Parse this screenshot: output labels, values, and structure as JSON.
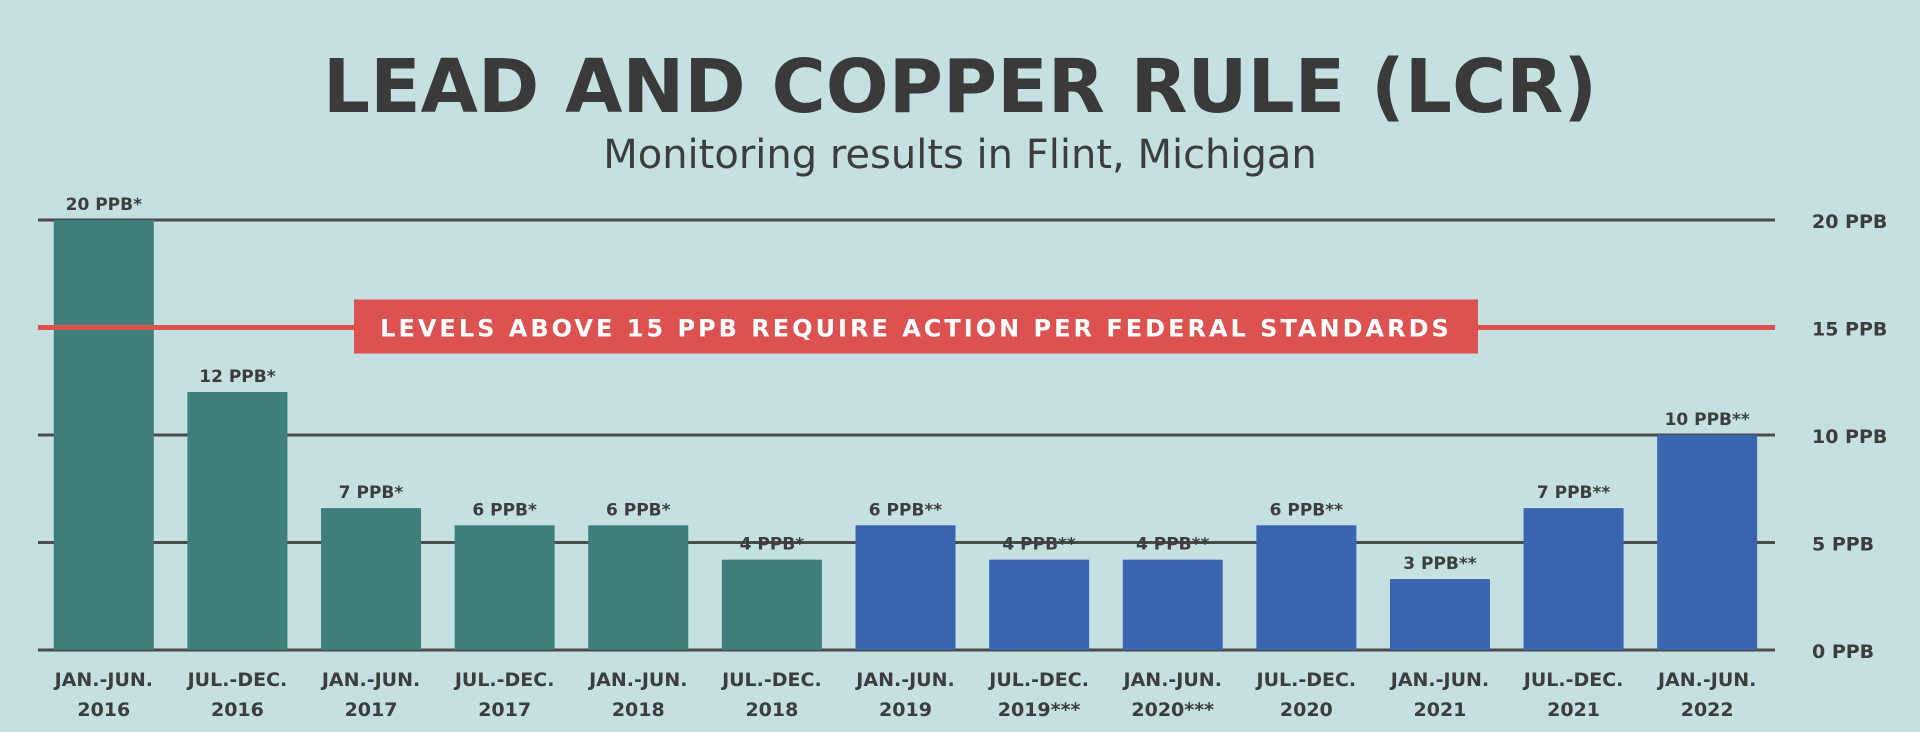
{
  "chart_data": {
    "type": "bar",
    "title": "LEAD AND COPPER RULE (LCR)",
    "subtitle": "Monitoring results in Flint, Michigan",
    "categories": [
      [
        "JAN.-JUN.",
        "2016"
      ],
      [
        "JUL.-DEC.",
        "2016"
      ],
      [
        "JAN.-JUN.",
        "2017"
      ],
      [
        "JUL.-DEC.",
        "2017"
      ],
      [
        "JAN.-JUN.",
        "2018"
      ],
      [
        "JUL.-DEC.",
        "2018"
      ],
      [
        "JAN.-JUN.",
        "2019"
      ],
      [
        "JUL.-DEC.",
        "2019***"
      ],
      [
        "JAN.-JUN.",
        "2020***"
      ],
      [
        "JUL.-DEC.",
        "2020"
      ],
      [
        "JAN.-JUN.",
        "2021"
      ],
      [
        "JUL.-DEC.",
        "2021"
      ],
      [
        "JAN.-JUN.",
        "2022"
      ]
    ],
    "values": [
      20,
      12,
      6.6,
      5.8,
      5.8,
      4.2,
      5.8,
      4.2,
      4.2,
      5.8,
      3.3,
      6.6,
      10
    ],
    "labels": [
      "20 PPB*",
      "12 PPB*",
      "7 PPB*",
      "6 PPB*",
      "6 PPB*",
      "4 PPB*",
      "6 PPB**",
      "4 PPB**",
      "4 PPB**",
      "6 PPB**",
      "3 PPB**",
      "7 PPB**",
      "10 PPB**"
    ],
    "series_group": [
      "teal",
      "teal",
      "teal",
      "teal",
      "teal",
      "teal",
      "blue",
      "blue",
      "blue",
      "blue",
      "blue",
      "blue",
      "blue"
    ],
    "yticks": [
      0,
      5,
      10,
      15,
      20
    ],
    "ytick_labels": [
      "0 PPB",
      "5 PPB",
      "10 PPB",
      "15 PPB",
      "20 PPB"
    ],
    "ylim": [
      0,
      20
    ],
    "threshold": {
      "value": 15,
      "label": "LEVELS ABOVE 15 PPB REQUIRE ACTION PER FEDERAL STANDARDS"
    },
    "grid": true
  },
  "colors": {
    "background": "#c5e0e0",
    "teal": "#3e7f7c",
    "blue": "#3966ae",
    "gridline": "#4b4b4b",
    "threshold": "#dc5250",
    "text": "#3d3d3d"
  }
}
